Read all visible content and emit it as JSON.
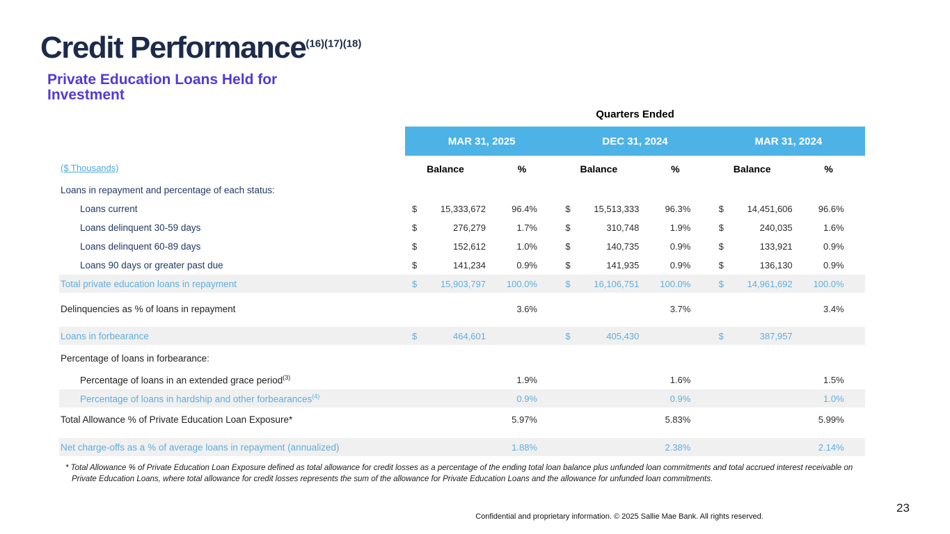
{
  "slide": {
    "title": "Credit Performance",
    "title_superscript": "(16)(17)(18)",
    "subtitle": "Private Education Loans Held for Investment",
    "page_number": "23",
    "footer": "Confidential and proprietary information. © 2025 Sallie Mae Bank. All rights reserved."
  },
  "table": {
    "group_header": "Quarters Ended",
    "unit_label": "($ Thousands)",
    "quarters": [
      "MAR 31, 2025",
      "DEC 31, 2024",
      "MAR 31, 2024"
    ],
    "sub_headers": {
      "balance": "Balance",
      "percent": "%"
    },
    "rows": [
      {
        "label": "Loans in repayment and percentage of each status:"
      },
      {
        "label": "Loans current",
        "q": [
          {
            "d": "$",
            "b": "15,333,672",
            "p": "96.4%"
          },
          {
            "d": "$",
            "b": "15,513,333",
            "p": "96.3%"
          },
          {
            "d": "$",
            "b": "14,451,606",
            "p": "96.6%"
          }
        ]
      },
      {
        "label": "Loans delinquent 30-59 days",
        "q": [
          {
            "d": "$",
            "b": "276,279",
            "p": "1.7%"
          },
          {
            "d": "$",
            "b": "310,748",
            "p": "1.9%"
          },
          {
            "d": "$",
            "b": "240,035",
            "p": "1.6%"
          }
        ]
      },
      {
        "label": "Loans delinquent 60-89 days",
        "q": [
          {
            "d": "$",
            "b": "152,612",
            "p": "1.0%"
          },
          {
            "d": "$",
            "b": "140,735",
            "p": "0.9%"
          },
          {
            "d": "$",
            "b": "133,921",
            "p": "0.9%"
          }
        ]
      },
      {
        "label": "Loans 90 days or greater past due",
        "q": [
          {
            "d": "$",
            "b": "141,234",
            "p": "0.9%"
          },
          {
            "d": "$",
            "b": "141,935",
            "p": "0.9%"
          },
          {
            "d": "$",
            "b": "136,130",
            "p": "0.9%"
          }
        ]
      },
      {
        "label": "Total private education loans in repayment",
        "q": [
          {
            "d": "$",
            "b": "15,903,797",
            "p": "100.0%"
          },
          {
            "d": "$",
            "b": "16,106,751",
            "p": "100.0%"
          },
          {
            "d": "$",
            "b": "14,961,692",
            "p": "100.0%"
          }
        ]
      },
      {
        "label": "Delinquencies as % of loans in repayment",
        "q": [
          {
            "p": "3.6%"
          },
          {
            "p": "3.7%"
          },
          {
            "p": "3.4%"
          }
        ]
      },
      {
        "label": "Loans in forbearance",
        "q": [
          {
            "d": "$",
            "b": "464,601"
          },
          {
            "d": "$",
            "b": "405,430"
          },
          {
            "d": "$",
            "b": "387,957"
          }
        ]
      },
      {
        "label": "Percentage of loans in forbearance:"
      },
      {
        "label": "Percentage of loans in an extended grace period",
        "sup": "(3)",
        "q": [
          {
            "p": "1.9%"
          },
          {
            "p": "1.6%"
          },
          {
            "p": "1.5%"
          }
        ]
      },
      {
        "label": "Percentage of loans in hardship and other forbearances",
        "sup": "(4)",
        "q": [
          {
            "p": "0.9%"
          },
          {
            "p": "0.9%"
          },
          {
            "p": "1.0%"
          }
        ]
      },
      {
        "label": "Total Allowance % of Private Education Loan Exposure*",
        "q": [
          {
            "p": "5.97%"
          },
          {
            "p": "5.83%"
          },
          {
            "p": "5.99%"
          }
        ]
      },
      {
        "label": "Net charge-offs as a % of average loans in repayment (annualized)",
        "q": [
          {
            "p": "1.88%"
          },
          {
            "p": "2.38%"
          },
          {
            "p": "2.14%"
          }
        ]
      }
    ]
  },
  "footnote": "* Total Allowance % of Private Education Loan Exposure defined as total allowance for credit losses as a percentage of the ending total loan balance plus unfunded loan commitments and total accrued interest receivable on Private Education Loans, where total allowance for credit losses represents the sum of the allowance for Private Education Loans and the allowance for unfunded loan commitments.",
  "colors": {
    "brand_navy": "#1C2B4A",
    "brand_purple": "#5438D8",
    "header_band_blue": "#4DB3E6",
    "highlight_text_blue": "#5FAEDC",
    "highlight_band_gray": "#F0F0F0"
  }
}
